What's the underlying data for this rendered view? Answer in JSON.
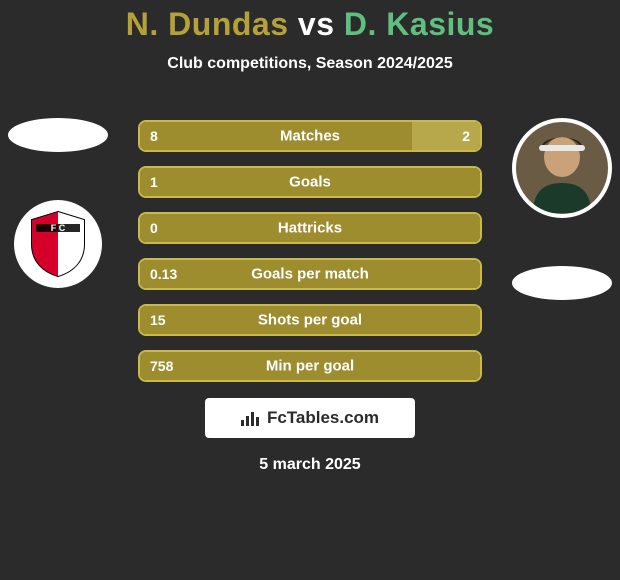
{
  "background_color": "#2b2b2b",
  "text_color": "#ffffff",
  "title": {
    "player1": "N. Dundas",
    "vs": "vs",
    "player2": "D. Kasius",
    "player1_color": "#b5a13a",
    "vs_color": "#ffffff",
    "player2_color": "#5fbf7f",
    "fontsize": 32
  },
  "subtitle": "Club competitions, Season 2024/2025",
  "stats": {
    "bar_color": "#9d8d2f",
    "border_color": "#c9b94a",
    "right_fill_color": "#b7a84b",
    "rows": [
      {
        "label": "Matches",
        "left": "8",
        "right": "2",
        "left_share": 0.8,
        "right_share": 0.2
      },
      {
        "label": "Goals",
        "left": "1",
        "right": "",
        "left_share": 1.0,
        "right_share": 0.0
      },
      {
        "label": "Hattricks",
        "left": "0",
        "right": "",
        "left_share": 1.0,
        "right_share": 0.0
      },
      {
        "label": "Goals per match",
        "left": "0.13",
        "right": "",
        "left_share": 1.0,
        "right_share": 0.0
      },
      {
        "label": "Shots per goal",
        "left": "15",
        "right": "",
        "left_share": 1.0,
        "right_share": 0.0
      },
      {
        "label": "Min per goal",
        "left": "758",
        "right": "",
        "left_share": 1.0,
        "right_share": 0.0
      }
    ]
  },
  "brand": {
    "text": "FcTables.com",
    "box_bg": "#ffffff",
    "text_color": "#2b2b2b"
  },
  "date": "5 march 2025",
  "left_badge": {
    "primary": "#d4002a",
    "secondary": "#ffffff",
    "letters": "FC"
  },
  "right_photo": {
    "border": "#ffffff",
    "bg": "#6a5b44"
  }
}
